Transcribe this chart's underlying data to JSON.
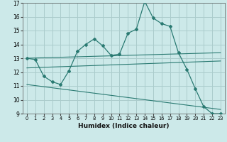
{
  "xlabel": "Humidex (Indice chaleur)",
  "background_color": "#cce9e9",
  "grid_color": "#aacccc",
  "line_color": "#2a7a72",
  "xlim": [
    -0.5,
    23.5
  ],
  "ylim": [
    9,
    17
  ],
  "xticks": [
    0,
    1,
    2,
    3,
    4,
    5,
    6,
    7,
    8,
    9,
    10,
    11,
    12,
    13,
    14,
    15,
    16,
    17,
    18,
    19,
    20,
    21,
    22,
    23
  ],
  "yticks": [
    9,
    10,
    11,
    12,
    13,
    14,
    15,
    16,
    17
  ],
  "curve1_x": [
    0,
    1,
    2,
    3,
    4,
    5,
    6,
    7,
    8,
    9,
    10,
    11,
    12,
    13,
    14,
    15,
    16,
    17,
    18,
    19,
    20,
    21,
    22,
    23
  ],
  "curve1_y": [
    13.0,
    12.9,
    11.7,
    11.3,
    11.1,
    12.1,
    13.5,
    14.0,
    14.4,
    13.9,
    13.2,
    13.3,
    14.8,
    15.1,
    17.1,
    15.9,
    15.5,
    15.3,
    13.4,
    12.2,
    10.8,
    9.5,
    9.0,
    9.0
  ],
  "line1_x": [
    0,
    23
  ],
  "line1_y": [
    13.0,
    13.4
  ],
  "line2_x": [
    0,
    23
  ],
  "line2_y": [
    12.3,
    12.8
  ],
  "line3_x": [
    0,
    23
  ],
  "line3_y": [
    11.1,
    9.3
  ]
}
